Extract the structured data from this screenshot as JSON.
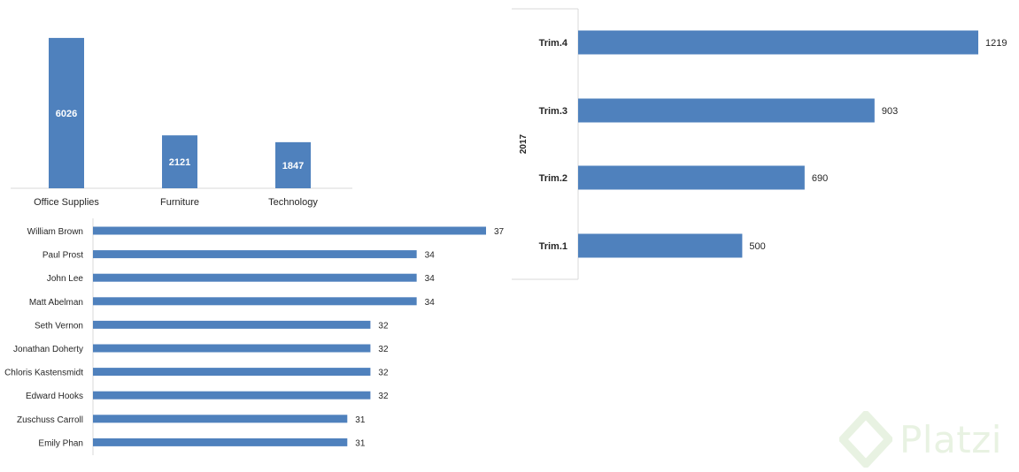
{
  "charts": {
    "category_chart": {
      "type": "bar",
      "categories": [
        "Office Supplies",
        "Furniture",
        "Technology"
      ],
      "values": [
        6026,
        2121,
        1847
      ],
      "ylim": [
        0,
        6200
      ],
      "bar_color": "#4f81bd",
      "title": "",
      "xlabel": "",
      "ylabel": ""
    },
    "customer_chart": {
      "type": "bar",
      "orientation": "horizontal",
      "categories": [
        "William Brown",
        "Paul Prost",
        "John Lee",
        "Matt Abelman",
        "Seth Vernon",
        "Jonathan Doherty",
        "Chloris Kastensmidt",
        "Edward Hooks",
        "Zuschuss Carroll",
        "Emily Phan"
      ],
      "values": [
        37,
        34,
        34,
        34,
        32,
        32,
        32,
        32,
        31,
        31
      ],
      "xlim": [
        20,
        37
      ],
      "bar_color": "#4f81bd"
    },
    "quarter_chart": {
      "type": "bar",
      "orientation": "horizontal",
      "group_label": "2017",
      "categories": [
        "Trim.4",
        "Trim.3",
        "Trim.2",
        "Trim.1"
      ],
      "values": [
        1219,
        903,
        690,
        500
      ],
      "xlim": [
        0,
        1219
      ],
      "bar_color": "#4f81bd"
    }
  },
  "chart_data": [
    {
      "type": "bar",
      "categories": [
        "Office Supplies",
        "Furniture",
        "Technology"
      ],
      "values": [
        6026,
        2121,
        1847
      ],
      "ylim": [
        0,
        6200
      ],
      "title": "",
      "xlabel": "",
      "ylabel": ""
    },
    {
      "type": "bar",
      "orientation": "horizontal",
      "categories": [
        "William Brown",
        "Paul Prost",
        "John Lee",
        "Matt Abelman",
        "Seth Vernon",
        "Jonathan Doherty",
        "Chloris Kastensmidt",
        "Edward Hooks",
        "Zuschuss Carroll",
        "Emily Phan"
      ],
      "values": [
        37,
        34,
        34,
        34,
        32,
        32,
        32,
        32,
        31,
        31
      ],
      "title": "",
      "xlabel": "",
      "ylabel": ""
    },
    {
      "type": "bar",
      "orientation": "horizontal",
      "group_label": "2017",
      "categories": [
        "Trim.4",
        "Trim.3",
        "Trim.2",
        "Trim.1"
      ],
      "values": [
        1219,
        903,
        690,
        500
      ],
      "title": "",
      "xlabel": "",
      "ylabel": ""
    }
  ],
  "watermark": {
    "text": "Platzi",
    "color": "#d7e8cc",
    "icon": "platzi-logo-icon"
  }
}
